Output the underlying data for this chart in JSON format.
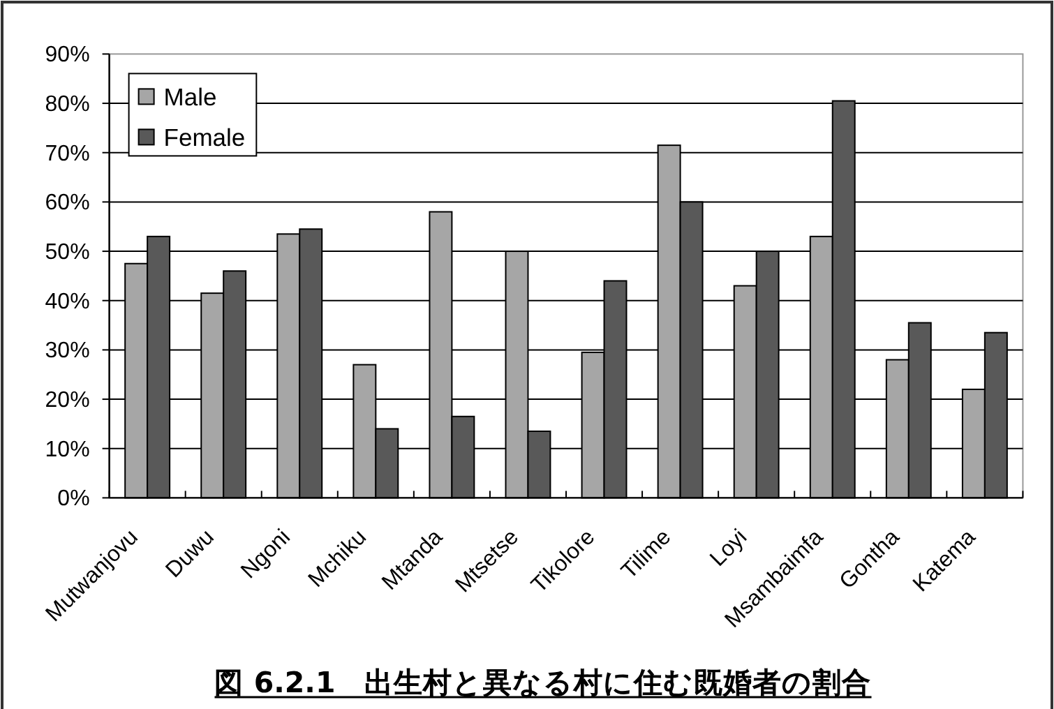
{
  "chart_data": {
    "type": "bar",
    "title": "図 6.2.1　出生村と異なる村に住む既婚者の割合",
    "categories": [
      "Mutwanjovu",
      "Duwu",
      "Ngoni",
      "Mchiku",
      "Mtanda",
      "Mtsetse",
      "Tikolore",
      "Tilime",
      "Loyi",
      "Msambaimfa",
      "Gontha",
      "Katema"
    ],
    "series": [
      {
        "name": "Male",
        "color": "#a6a6a6",
        "values": [
          47.5,
          41.5,
          53.5,
          27,
          58,
          50,
          29.5,
          71.5,
          43,
          53,
          28,
          22
        ]
      },
      {
        "name": "Female",
        "color": "#595959",
        "values": [
          53,
          46,
          54.5,
          14,
          16.5,
          13.5,
          44,
          60,
          50,
          80.5,
          35.5,
          33.5
        ]
      }
    ],
    "ylim": [
      0,
      90
    ],
    "yticks": [
      {
        "value": 0,
        "label": "0%"
      },
      {
        "value": 10,
        "label": "10%"
      },
      {
        "value": 20,
        "label": "20%"
      },
      {
        "value": 30,
        "label": "30%"
      },
      {
        "value": 40,
        "label": "40%"
      },
      {
        "value": 50,
        "label": "50%"
      },
      {
        "value": 60,
        "label": "60%"
      },
      {
        "value": 70,
        "label": "70%"
      },
      {
        "value": 80,
        "label": "80%"
      },
      {
        "value": 90,
        "label": "90%"
      }
    ],
    "grid": "y",
    "legend": "top left"
  }
}
